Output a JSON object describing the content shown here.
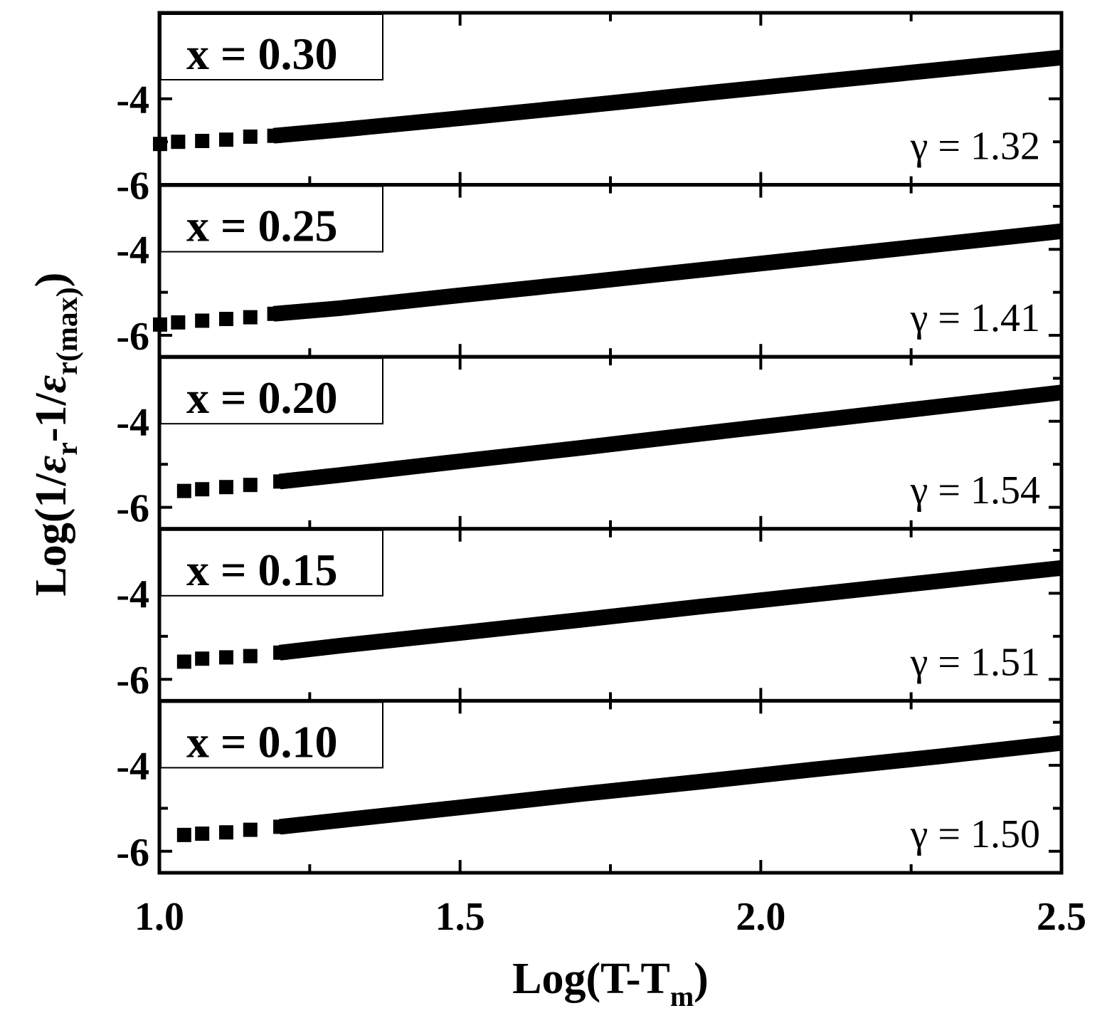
{
  "chart_data": {
    "type": "scatter",
    "xlabel": "Log(T-T",
    "xlabel_sub": "m",
    "xlabel_close": ")",
    "ylabel_parts": [
      "Log(1/",
      "ε",
      "r",
      "-1/",
      "ε",
      "r(max)",
      ")"
    ],
    "xlim": [
      1.0,
      2.5
    ],
    "xticks": [
      "1.0",
      "1.5",
      "2.0",
      "2.5"
    ],
    "grid": false,
    "panels": [
      {
        "label": "x = 0.30",
        "gamma": "γ = 1.32",
        "ylim": [
          -6,
          -2
        ],
        "yticks": [
          "-4",
          "-6"
        ],
        "points": [
          [
            1.0,
            -5.05
          ],
          [
            1.03,
            -5.0
          ],
          [
            1.07,
            -4.98
          ],
          [
            1.11,
            -4.95
          ],
          [
            1.15,
            -4.88
          ],
          [
            1.19,
            -4.86
          ],
          [
            1.3,
            -4.72
          ],
          [
            1.5,
            -4.45
          ],
          [
            1.7,
            -4.17
          ],
          [
            1.9,
            -3.88
          ],
          [
            2.1,
            -3.6
          ],
          [
            2.3,
            -3.32
          ],
          [
            2.5,
            -3.04
          ]
        ]
      },
      {
        "label": "x = 0.25",
        "gamma": "γ = 1.41",
        "ylim": [
          -6.5,
          -2.5
        ],
        "yticks": [
          "-4",
          "-6"
        ],
        "points": [
          [
            1.0,
            -5.75
          ],
          [
            1.03,
            -5.7
          ],
          [
            1.07,
            -5.66
          ],
          [
            1.11,
            -5.62
          ],
          [
            1.15,
            -5.58
          ],
          [
            1.19,
            -5.5
          ],
          [
            1.3,
            -5.37
          ],
          [
            1.5,
            -5.07
          ],
          [
            1.7,
            -4.78
          ],
          [
            1.9,
            -4.48
          ],
          [
            2.1,
            -4.18
          ],
          [
            2.3,
            -3.88
          ],
          [
            2.5,
            -3.58
          ]
        ]
      },
      {
        "label": "x = 0.20",
        "gamma": "γ = 1.54",
        "ylim": [
          -6.5,
          -2.5
        ],
        "yticks": [
          "-4",
          "-6"
        ],
        "points": [
          [
            1.04,
            -5.62
          ],
          [
            1.07,
            -5.58
          ],
          [
            1.11,
            -5.53
          ],
          [
            1.15,
            -5.48
          ],
          [
            1.2,
            -5.4
          ],
          [
            1.3,
            -5.25
          ],
          [
            1.5,
            -4.93
          ],
          [
            1.7,
            -4.62
          ],
          [
            1.9,
            -4.29
          ],
          [
            2.1,
            -3.97
          ],
          [
            2.3,
            -3.65
          ],
          [
            2.5,
            -3.33
          ]
        ]
      },
      {
        "label": "x = 0.15",
        "gamma": "γ = 1.51",
        "ylim": [
          -6.5,
          -2.5
        ],
        "yticks": [
          "-4",
          "-6"
        ],
        "points": [
          [
            1.04,
            -5.59
          ],
          [
            1.07,
            -5.52
          ],
          [
            1.11,
            -5.49
          ],
          [
            1.15,
            -5.46
          ],
          [
            1.2,
            -5.38
          ],
          [
            1.3,
            -5.22
          ],
          [
            1.5,
            -4.92
          ],
          [
            1.7,
            -4.62
          ],
          [
            1.9,
            -4.31
          ],
          [
            2.1,
            -4.01
          ],
          [
            2.3,
            -3.71
          ],
          [
            2.5,
            -3.41
          ]
        ]
      },
      {
        "label": "x = 0.10",
        "gamma": "γ = 1.50",
        "ylim": [
          -6.5,
          -2.5
        ],
        "yticks": [
          "-4",
          "-6"
        ],
        "points": [
          [
            1.04,
            -5.62
          ],
          [
            1.07,
            -5.59
          ],
          [
            1.11,
            -5.56
          ],
          [
            1.15,
            -5.5
          ],
          [
            1.2,
            -5.43
          ],
          [
            1.3,
            -5.28
          ],
          [
            1.5,
            -4.98
          ],
          [
            1.7,
            -4.67
          ],
          [
            1.9,
            -4.38
          ],
          [
            2.1,
            -4.08
          ],
          [
            2.3,
            -3.79
          ],
          [
            2.5,
            -3.48
          ]
        ]
      }
    ]
  }
}
